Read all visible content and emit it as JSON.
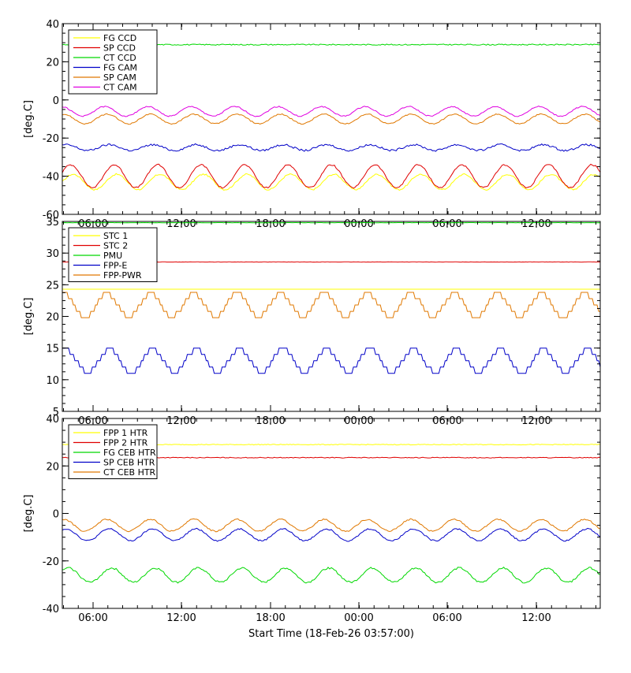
{
  "xlabel": "Start Time (18-Feb-26 03:57:00)",
  "x_ticks": [
    "06:00",
    "12:00",
    "18:00",
    "00:00",
    "06:00",
    "12:00"
  ],
  "chart_data": [
    {
      "type": "line",
      "ylabel": "[deg.C]",
      "ylim": [
        -60,
        40
      ],
      "yticks": [
        -60,
        -40,
        -20,
        0,
        20,
        40
      ],
      "xticks": [
        "06:00",
        "12:00",
        "18:00",
        "00:00",
        "06:00",
        "12:00"
      ],
      "legend": "top-left",
      "series": [
        {
          "name": "FG CCD",
          "color": "#ffff00",
          "mean": -43,
          "amp": 4,
          "period_h": 2.95,
          "noise": 0.4
        },
        {
          "name": "SP CCD",
          "color": "#e00000",
          "mean": -40,
          "amp": 6,
          "period_h": 2.95,
          "noise": 0.4
        },
        {
          "name": "CT CCD",
          "color": "#00d800",
          "mean": 29,
          "amp": 0,
          "period_h": 2.95,
          "noise": 0.3
        },
        {
          "name": "FG CAM",
          "color": "#0000c8",
          "mean": -25,
          "amp": 1.5,
          "period_h": 2.95,
          "noise": 0.5
        },
        {
          "name": "SP CAM",
          "color": "#e07800",
          "mean": -10,
          "amp": 2.5,
          "period_h": 2.95,
          "noise": 0.3
        },
        {
          "name": "CT CAM",
          "color": "#e000e0",
          "mean": -6,
          "amp": 2.5,
          "period_h": 2.95,
          "noise": 0.3
        }
      ]
    },
    {
      "type": "line",
      "ylabel": "[deg.C]",
      "ylim": [
        5,
        35
      ],
      "yticks": [
        5,
        10,
        15,
        20,
        25,
        30,
        35
      ],
      "xticks": [
        "06:00",
        "12:00",
        "18:00",
        "00:00",
        "06:00",
        "12:00"
      ],
      "legend": "top-left",
      "series": [
        {
          "name": "STC 1",
          "color": "#ffff00",
          "mean": 24.3,
          "amp": 0.5,
          "period_h": 2.95,
          "noise": 0.05
        },
        {
          "name": "STC 2",
          "color": "#e00000",
          "mean": 28.6,
          "amp": 0,
          "period_h": 2.95,
          "noise": 0.02
        },
        {
          "name": "PMU",
          "color": "#00d800",
          "mean": 34.8,
          "amp": 0,
          "period_h": 2.95,
          "noise": 0.02
        },
        {
          "name": "FPP-E",
          "color": "#0000c8",
          "mean": 13,
          "amp": 1.8,
          "period_h": 2.95,
          "noise": 0.05
        },
        {
          "name": "FPP-PWR",
          "color": "#e07800",
          "mean": 21.8,
          "amp": 1.8,
          "period_h": 2.95,
          "noise": 0.05
        }
      ]
    },
    {
      "type": "line",
      "ylabel": "[deg.C]",
      "ylim": [
        -40,
        40
      ],
      "yticks": [
        -40,
        -20,
        0,
        20,
        40
      ],
      "xticks": [
        "06:00",
        "12:00",
        "18:00",
        "00:00",
        "06:00",
        "12:00"
      ],
      "legend": "top-left",
      "series": [
        {
          "name": "FPP 1 HTR",
          "color": "#ffff00",
          "mean": 29,
          "amp": 0,
          "period_h": 2.95,
          "noise": 0.15
        },
        {
          "name": "FPP 2 HTR",
          "color": "#e00000",
          "mean": 23.5,
          "amp": 0,
          "period_h": 2.95,
          "noise": 0.15
        },
        {
          "name": "FG CEB HTR",
          "color": "#00d800",
          "mean": -26,
          "amp": 3,
          "period_h": 2.95,
          "noise": 0.4
        },
        {
          "name": "SP CEB HTR",
          "color": "#0000c8",
          "mean": -9,
          "amp": 2.5,
          "period_h": 2.95,
          "noise": 0.3
        },
        {
          "name": "CT CEB HTR",
          "color": "#e07800",
          "mean": -5,
          "amp": 2.5,
          "period_h": 2.95,
          "noise": 0.3
        }
      ]
    }
  ]
}
